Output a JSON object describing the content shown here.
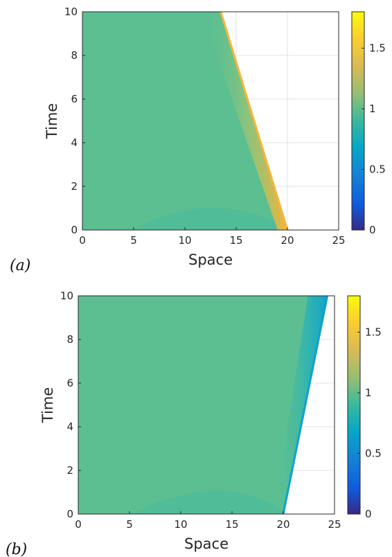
{
  "chart_data": [
    {
      "type": "heatmap",
      "panel_label": "(a)",
      "xlabel": "Space",
      "ylabel": "Time",
      "xlim": [
        0,
        25
      ],
      "ylim": [
        0,
        10
      ],
      "x_ticks": [
        "0",
        "5",
        "10",
        "15",
        "20",
        "25"
      ],
      "y_ticks": [
        "0",
        "2",
        "4",
        "6",
        "8",
        "10"
      ],
      "colorbar": {
        "limits": [
          0,
          1.8
        ],
        "tick_labels": [
          "0",
          "0.5",
          "1",
          "1.5"
        ]
      },
      "grid": true,
      "field": {
        "base_value": 1.05,
        "front": {
          "start": [
            20,
            0
          ],
          "end": [
            13.5,
            10
          ]
        },
        "front_max_value": 1.8,
        "low_bump": {
          "center": [
            12,
            0.3
          ],
          "value": 0.95
        }
      }
    },
    {
      "type": "heatmap",
      "panel_label": "(b)",
      "xlabel": "Space",
      "ylabel": "Time",
      "xlim": [
        0,
        25
      ],
      "ylim": [
        0,
        10
      ],
      "x_ticks": [
        "0",
        "5",
        "10",
        "15",
        "20",
        "25"
      ],
      "y_ticks": [
        "0",
        "2",
        "4",
        "6",
        "8",
        "10"
      ],
      "colorbar": {
        "limits": [
          0,
          1.8
        ],
        "tick_labels": [
          "0",
          "0.5",
          "1",
          "1.5"
        ]
      },
      "grid": true,
      "field": {
        "base_value": 1.05,
        "front": {
          "start": [
            20,
            0
          ],
          "end": [
            24.3,
            10
          ]
        },
        "front_min_value": 0.78,
        "low_bump": {
          "center": [
            14,
            0.4
          ],
          "value": 0.97
        }
      }
    }
  ]
}
